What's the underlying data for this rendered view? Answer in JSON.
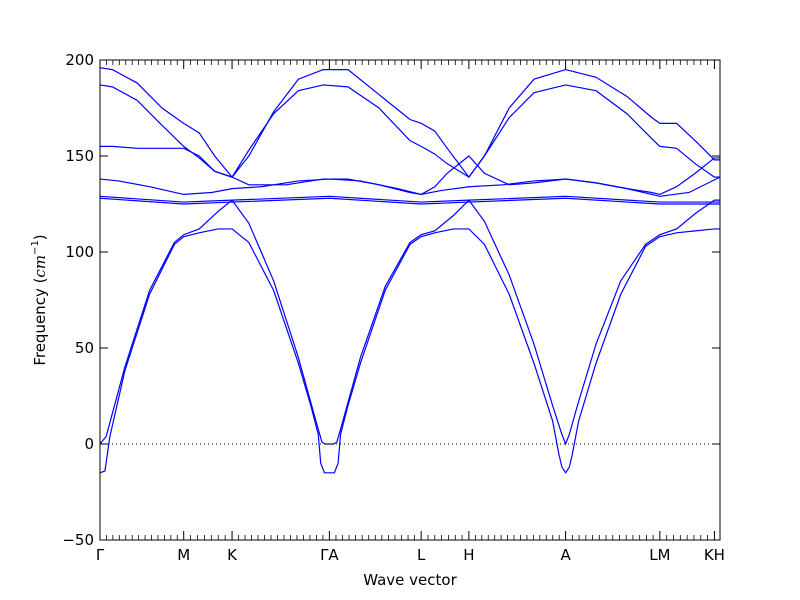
{
  "chart_data": {
    "type": "line",
    "title": "",
    "xlabel": "Wave vector",
    "ylabel": "Frequency (cm^-1)",
    "ylabel_parts": {
      "text": "Frequency (",
      "unit": "cm",
      "exp": "−1",
      "close": ")"
    },
    "ylim": [
      -50,
      200
    ],
    "yticks": [
      -50,
      0,
      50,
      100,
      150,
      200
    ],
    "ytick_labels": [
      "−50",
      "0",
      "50",
      "100",
      "150",
      "200"
    ],
    "xlim": [
      0,
      1
    ],
    "grid": false,
    "legend": "none",
    "zero_line": {
      "y": 0,
      "style": "dotted"
    },
    "line_color": "#0000ff",
    "high_symmetry_points": [
      {
        "label": "Γ",
        "x": 0.0
      },
      {
        "label": "M",
        "x": 0.135
      },
      {
        "label": "K",
        "x": 0.213
      },
      {
        "label": "ΓA",
        "x": 0.37
      },
      {
        "label": "L",
        "x": 0.518
      },
      {
        "label": "H",
        "x": 0.595
      },
      {
        "label": "A",
        "x": 0.751
      },
      {
        "label": "LM",
        "x": 0.903
      },
      {
        "label": "KH",
        "x": 0.991
      }
    ],
    "series": [
      {
        "values": [
          [
            0.0,
            196
          ],
          [
            0.02,
            195
          ],
          [
            0.06,
            188
          ],
          [
            0.1,
            175
          ],
          [
            0.135,
            167
          ],
          [
            0.16,
            162
          ],
          [
            0.185,
            150
          ],
          [
            0.213,
            139
          ],
          [
            0.24,
            150
          ],
          [
            0.28,
            173
          ],
          [
            0.32,
            190
          ],
          [
            0.36,
            195
          ],
          [
            0.4,
            195
          ],
          [
            0.45,
            182
          ],
          [
            0.5,
            169
          ],
          [
            0.518,
            167
          ],
          [
            0.54,
            163
          ],
          [
            0.56,
            154
          ],
          [
            0.595,
            139
          ],
          [
            0.62,
            150
          ],
          [
            0.66,
            175
          ],
          [
            0.7,
            190
          ],
          [
            0.751,
            195
          ],
          [
            0.8,
            191
          ],
          [
            0.85,
            181
          ],
          [
            0.89,
            170
          ],
          [
            0.903,
            167
          ],
          [
            0.93,
            167
          ],
          [
            0.96,
            158
          ],
          [
            0.991,
            148
          ],
          [
            1.0,
            148
          ]
        ]
      },
      {
        "values": [
          [
            0.0,
            187
          ],
          [
            0.02,
            186
          ],
          [
            0.06,
            179
          ],
          [
            0.1,
            166
          ],
          [
            0.135,
            155
          ],
          [
            0.16,
            149
          ],
          [
            0.185,
            142
          ],
          [
            0.213,
            139
          ],
          [
            0.24,
            153
          ],
          [
            0.28,
            172
          ],
          [
            0.32,
            184
          ],
          [
            0.36,
            187
          ],
          [
            0.4,
            186
          ],
          [
            0.45,
            175
          ],
          [
            0.5,
            158
          ],
          [
            0.518,
            155
          ],
          [
            0.54,
            151
          ],
          [
            0.56,
            146
          ],
          [
            0.595,
            139
          ],
          [
            0.62,
            150
          ],
          [
            0.66,
            170
          ],
          [
            0.7,
            183
          ],
          [
            0.751,
            187
          ],
          [
            0.8,
            184
          ],
          [
            0.85,
            172
          ],
          [
            0.89,
            159
          ],
          [
            0.903,
            155
          ],
          [
            0.93,
            154
          ],
          [
            0.96,
            146
          ],
          [
            0.991,
            139
          ],
          [
            1.0,
            139
          ]
        ]
      },
      {
        "values": [
          [
            0.0,
            155
          ],
          [
            0.02,
            155
          ],
          [
            0.06,
            154
          ],
          [
            0.1,
            154
          ],
          [
            0.135,
            154
          ],
          [
            0.16,
            150
          ],
          [
            0.185,
            142
          ],
          [
            0.213,
            139
          ],
          [
            0.24,
            135
          ],
          [
            0.3,
            135
          ],
          [
            0.36,
            138
          ],
          [
            0.4,
            138
          ],
          [
            0.45,
            135
          ],
          [
            0.5,
            131
          ],
          [
            0.518,
            130
          ],
          [
            0.54,
            134
          ],
          [
            0.56,
            141
          ],
          [
            0.595,
            150
          ],
          [
            0.62,
            141
          ],
          [
            0.66,
            135
          ],
          [
            0.7,
            136
          ],
          [
            0.751,
            138
          ],
          [
            0.8,
            136
          ],
          [
            0.85,
            133
          ],
          [
            0.89,
            131
          ],
          [
            0.903,
            130
          ],
          [
            0.93,
            134
          ],
          [
            0.96,
            141
          ],
          [
            0.991,
            149
          ],
          [
            1.0,
            149
          ]
        ]
      },
      {
        "values": [
          [
            0.0,
            138
          ],
          [
            0.03,
            137
          ],
          [
            0.08,
            134
          ],
          [
            0.135,
            130
          ],
          [
            0.18,
            131
          ],
          [
            0.213,
            133
          ],
          [
            0.26,
            134
          ],
          [
            0.32,
            137
          ],
          [
            0.37,
            138
          ],
          [
            0.42,
            137
          ],
          [
            0.48,
            133
          ],
          [
            0.518,
            130
          ],
          [
            0.55,
            132
          ],
          [
            0.595,
            134
          ],
          [
            0.65,
            135
          ],
          [
            0.7,
            137
          ],
          [
            0.751,
            138
          ],
          [
            0.8,
            136
          ],
          [
            0.85,
            133
          ],
          [
            0.903,
            129
          ],
          [
            0.95,
            131
          ],
          [
            1.0,
            139
          ]
        ]
      },
      {
        "values": [
          [
            0.0,
            129
          ],
          [
            0.135,
            126
          ],
          [
            0.213,
            127
          ],
          [
            0.37,
            129
          ],
          [
            0.518,
            126
          ],
          [
            0.595,
            127
          ],
          [
            0.751,
            129
          ],
          [
            0.903,
            126
          ],
          [
            0.991,
            126
          ],
          [
            1.0,
            126
          ]
        ]
      },
      {
        "values": [
          [
            0.0,
            128
          ],
          [
            0.135,
            125
          ],
          [
            0.213,
            126
          ],
          [
            0.37,
            128
          ],
          [
            0.518,
            125
          ],
          [
            0.595,
            126
          ],
          [
            0.751,
            128
          ],
          [
            0.903,
            125
          ],
          [
            0.991,
            125
          ],
          [
            1.0,
            125
          ]
        ]
      },
      {
        "values": [
          [
            0.0,
            0
          ],
          [
            0.01,
            4
          ],
          [
            0.04,
            40
          ],
          [
            0.08,
            80
          ],
          [
            0.12,
            105
          ],
          [
            0.135,
            109
          ],
          [
            0.16,
            112
          ],
          [
            0.19,
            121
          ],
          [
            0.213,
            127
          ],
          [
            0.24,
            115
          ],
          [
            0.28,
            85
          ],
          [
            0.32,
            45
          ],
          [
            0.35,
            10
          ],
          [
            0.358,
            1
          ],
          [
            0.363,
            0
          ],
          [
            0.377,
            0
          ],
          [
            0.382,
            1
          ],
          [
            0.39,
            10
          ],
          [
            0.42,
            45
          ],
          [
            0.46,
            82
          ],
          [
            0.5,
            105
          ],
          [
            0.518,
            109
          ],
          [
            0.54,
            111
          ],
          [
            0.57,
            119
          ],
          [
            0.595,
            127
          ],
          [
            0.62,
            116
          ],
          [
            0.66,
            88
          ],
          [
            0.7,
            52
          ],
          [
            0.73,
            20
          ],
          [
            0.745,
            5
          ],
          [
            0.751,
            0
          ],
          [
            0.757,
            5
          ],
          [
            0.77,
            20
          ],
          [
            0.8,
            52
          ],
          [
            0.84,
            85
          ],
          [
            0.88,
            104
          ],
          [
            0.903,
            109
          ],
          [
            0.93,
            112
          ],
          [
            0.96,
            120
          ],
          [
            0.991,
            127
          ],
          [
            1.0,
            127
          ]
        ]
      },
      {
        "values": [
          [
            0.0,
            -15
          ],
          [
            0.008,
            -14
          ],
          [
            0.012,
            -5
          ],
          [
            0.016,
            4
          ],
          [
            0.04,
            38
          ],
          [
            0.08,
            78
          ],
          [
            0.12,
            104
          ],
          [
            0.135,
            108
          ],
          [
            0.16,
            110
          ],
          [
            0.19,
            112
          ],
          [
            0.213,
            112
          ],
          [
            0.24,
            105
          ],
          [
            0.28,
            80
          ],
          [
            0.32,
            42
          ],
          [
            0.34,
            20
          ],
          [
            0.352,
            5
          ],
          [
            0.356,
            -10
          ],
          [
            0.362,
            -15
          ],
          [
            0.378,
            -15
          ],
          [
            0.384,
            -10
          ],
          [
            0.388,
            5
          ],
          [
            0.4,
            20
          ],
          [
            0.42,
            42
          ],
          [
            0.46,
            80
          ],
          [
            0.5,
            104
          ],
          [
            0.518,
            108
          ],
          [
            0.54,
            110
          ],
          [
            0.57,
            112
          ],
          [
            0.595,
            112
          ],
          [
            0.62,
            104
          ],
          [
            0.66,
            78
          ],
          [
            0.7,
            42
          ],
          [
            0.73,
            12
          ],
          [
            0.74,
            -5
          ],
          [
            0.745,
            -12
          ],
          [
            0.751,
            -15
          ],
          [
            0.757,
            -12
          ],
          [
            0.762,
            -5
          ],
          [
            0.772,
            12
          ],
          [
            0.8,
            42
          ],
          [
            0.84,
            78
          ],
          [
            0.88,
            103
          ],
          [
            0.903,
            108
          ],
          [
            0.93,
            110
          ],
          [
            0.96,
            111
          ],
          [
            0.991,
            112
          ],
          [
            1.0,
            112
          ]
        ]
      }
    ]
  }
}
